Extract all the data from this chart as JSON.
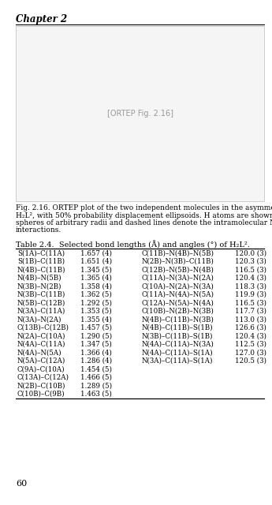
{
  "chapter_label": "Chapter 2",
  "table_title": "Table 2.4.  Selected bond lengths (Å) and angles (°) of H₂L².",
  "page_number": "60",
  "col1_bonds": [
    "S(1A)–C(11A)",
    "S(1B)–C(11B)",
    "N(4B)–C(11B)",
    "N(4B)–N(5B)",
    "N(3B)–N(2B)",
    "N(3B)–C(11B)",
    "N(5B)–C(12B)",
    "N(3A)–C(11A)",
    "N(3A)–N(2A)",
    "C(13B)–C(12B)",
    "N(2A)–C(10A)",
    "N(4A)–C(11A)",
    "N(4A)–N(5A)",
    "N(5A)–C(12A)",
    "C(9A)–C(10A)",
    "C(13A)–C(12A)",
    "N(2B)–C(10B)",
    "C(10B)–C(9B)"
  ],
  "col1_vals": [
    "1.657 (4)",
    "1.651 (4)",
    "1.345 (5)",
    "1.365 (4)",
    "1.358 (4)",
    "1.362 (5)",
    "1.292 (5)",
    "1.353 (5)",
    "1.355 (4)",
    "1.457 (5)",
    "1.290 (5)",
    "1.347 (5)",
    "1.366 (4)",
    "1.286 (4)",
    "1.454 (5)",
    "1.466 (5)",
    "1.289 (5)",
    "1.463 (5)"
  ],
  "col2_bonds": [
    "C(11B)–N(4B)–N(5B)",
    "N(2B)–N(3B)–C(11B)",
    "C(12B)–N(5B)–N(4B)",
    "C(11A)–N(3A)–N(2A)",
    "C(10A)–N(2A)–N(3A)",
    "C(11A)–N(4A)–N(5A)",
    "C(12A)–N(5A)–N(4A)",
    "C(10B)–N(2B)–N(3B)",
    "N(4B)–C(11B)–N(3B)",
    "N(4B)–C(11B)–S(1B)",
    "N(3B)–C(11B)–S(1B)",
    "N(4A)–C(11A)–N(3A)",
    "N(4A)–C(11A)–S(1A)",
    "N(3A)–C(11A)–S(1A)"
  ],
  "col2_vals": [
    "120.0 (3)",
    "120.3 (3)",
    "116.5 (3)",
    "120.4 (3)",
    "118.3 (3)",
    "119.9 (3)",
    "116.5 (3)",
    "117.7 (3)",
    "113.0 (3)",
    "126.6 (3)",
    "120.4 (3)",
    "112.5 (3)",
    "127.0 (3)",
    "120.5 (3)"
  ],
  "cap_line1": "Fig. 2.16. ORTEP plot of the two independent molecules in the asymmetric unit of",
  "cap_line2": "H₂L², with 50% probability displacement ellipsoids. H atoms are shown as small",
  "cap_line3": "spheres of arbitrary radii and dashed lines denote the intramolecular N–H···N",
  "cap_line4": "interactions.",
  "bg_color": "#ffffff",
  "text_color": "#000000",
  "line_color": "#000000"
}
